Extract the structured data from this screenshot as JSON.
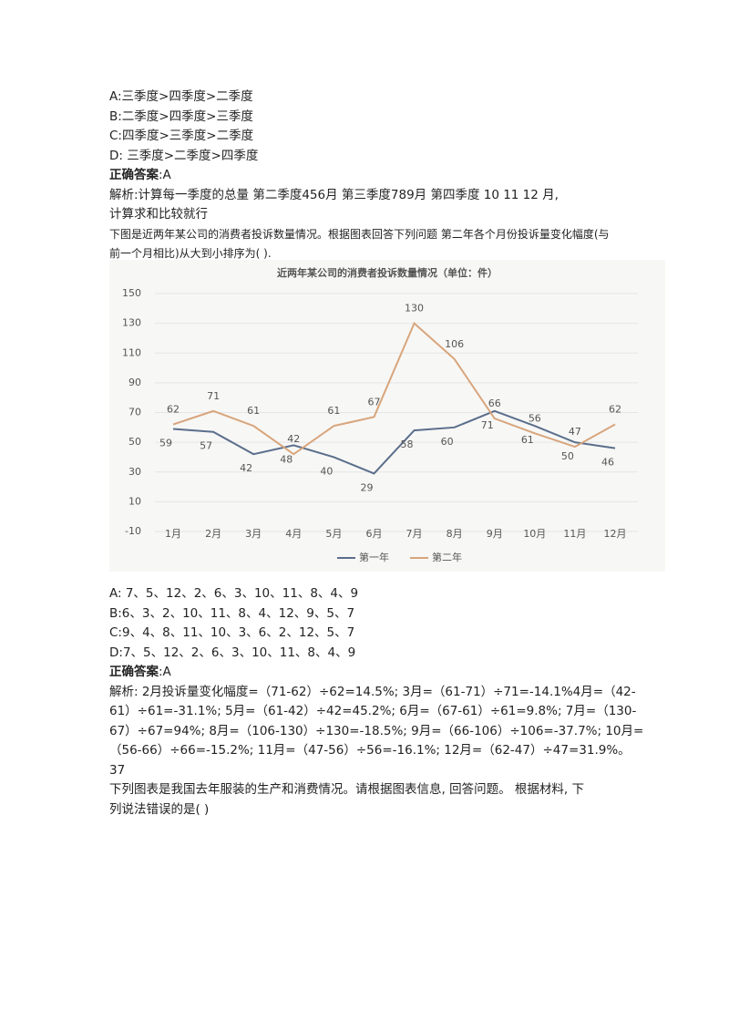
{
  "section1": {
    "options": [
      "A:三季度>四季度>二季度",
      "B:二季度>四季度>三季度",
      "C:四季度>三季度>二季度",
      "D: 三季度>二季度>四季度"
    ],
    "answer": {
      "label": "正确答案",
      "value": ":A"
    },
    "analysis": [
      "解析:计算每一季度的总量 第二季度456月 第三季度789月 第四季度 10 11 12 月,",
      "计算求和比较就行"
    ],
    "question": [
      "下图是近两年某公司的消费者投诉数量情况。根据图表回答下列问题 第二年各个月份投诉量变化幅度(与",
      "前一个月相比)从大到小排序为( )."
    ]
  },
  "chart_data": {
    "type": "line",
    "title": "近两年某公司的消费者投诉数量情况（单位：件）",
    "categories": [
      "1月",
      "2月",
      "3月",
      "4月",
      "5月",
      "6月",
      "7月",
      "8月",
      "9月",
      "10月",
      "11月",
      "12月"
    ],
    "series": [
      {
        "name": "第一年",
        "color": "#5b6e8c",
        "values": [
          59,
          57,
          42,
          48,
          40,
          29,
          58,
          60,
          71,
          61,
          50,
          46
        ]
      },
      {
        "name": "第二年",
        "color": "#d8a57c",
        "values": [
          62,
          71,
          61,
          42,
          61,
          67,
          130,
          106,
          66,
          56,
          47,
          62
        ]
      }
    ],
    "ylim": [
      -10,
      150
    ],
    "yticks": [
      -10,
      10,
      30,
      50,
      70,
      90,
      110,
      130,
      150
    ],
    "grid": true,
    "legend": "bottom"
  },
  "section2": {
    "options": [
      "A: 7、5、12、2、6、3、10、11、8、4、9",
      "B:6、3、2、10、11、8、4、12、9、5、7",
      "C:9、4、8、11、10、3、6、2、12、5、7",
      "D:7、5、12、2、6、3、10、11、8、4、9"
    ],
    "answer": {
      "label": "正确答案",
      "value": ":A"
    },
    "analysis": [
      "解析: 2月投诉量变化幅度=（71-62）÷62=14.5%; 3月=（61-71）÷71=-14.1%4月=（42-",
      "61）÷61=-31.1%; 5月=（61-42）÷42=45.2%; 6月=（67-61）÷61=9.8%; 7月=（130-",
      "67）÷67=94%; 8月=（106-130）÷130=-18.5%; 9月=（66-106）÷106=-37.7%; 10月=",
      "（56-66）÷66=-15.2%; 11月=（47-56）÷56=-16.1%; 12月=（62-47）÷47=31.9%。"
    ],
    "number": "37",
    "next_question": [
      "下列图表是我国去年服装的生产和消费情况。请根据图表信息, 回答问题。 根据材料, 下",
      "列说法错误的是( )"
    ]
  }
}
